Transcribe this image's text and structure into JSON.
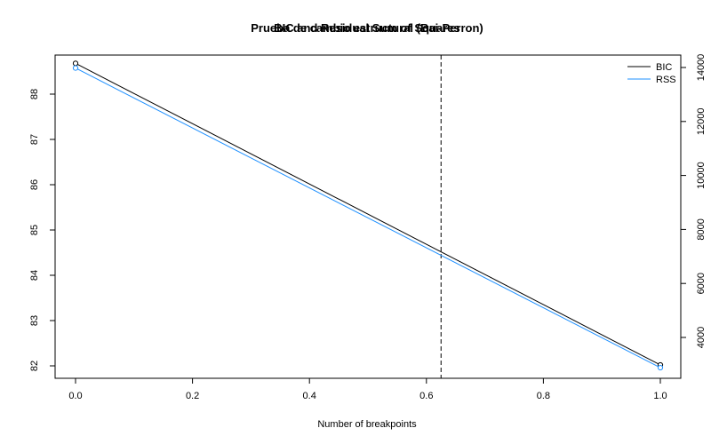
{
  "chart_data": {
    "type": "line",
    "title_overlay": [
      "Prueba de cambio estructural (Bai-Perron)",
      "BIC and Residual Sum of Squares"
    ],
    "xlabel": "Number of breakpoints",
    "ylabel_left": "",
    "ylabel_right": "",
    "xlim": [
      0,
      1
    ],
    "ylim_left": [
      81.8,
      88.9
    ],
    "ylim_right": [
      2500,
      14400
    ],
    "x_ticks": [
      "0.0",
      "0.2",
      "0.4",
      "0.6",
      "0.8",
      "1.0"
    ],
    "y_ticks_left": [
      "82",
      "83",
      "84",
      "85",
      "86",
      "87",
      "88"
    ],
    "y_ticks_right": [
      "4000",
      "6000",
      "8000",
      "10000",
      "12000",
      "14000"
    ],
    "break_line_x": 0.625,
    "legend_position": "top-right",
    "series": [
      {
        "name": "BIC",
        "axis": "left",
        "color": "#000000",
        "x": [
          0,
          1
        ],
        "y": [
          88.68,
          82.02
        ]
      },
      {
        "name": "RSS",
        "axis": "right",
        "color": "#1e90ff",
        "x": [
          0,
          1
        ],
        "y": [
          13980,
          2880
        ]
      }
    ]
  }
}
